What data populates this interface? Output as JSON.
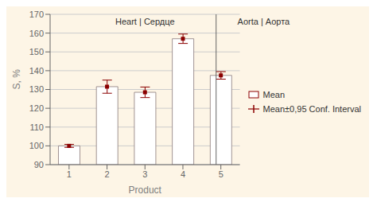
{
  "chart_data": {
    "type": "bar",
    "categories": [
      1,
      2,
      3,
      4,
      5
    ],
    "series": [
      {
        "name": "Mean",
        "color": "#ffffff",
        "edge_color": "#8a7a7a",
        "values": [
          100.0,
          131.5,
          128.5,
          157.0,
          137.5
        ],
        "errors": [
          0.8,
          3.5,
          2.8,
          2.5,
          2.0
        ],
        "error_label": "Mean±0,95 Conf. Interval",
        "error_color": "#8b0000"
      }
    ],
    "xlabel": "Product",
    "ylabel": "S, %",
    "ylim": [
      90,
      170
    ],
    "yticks": [
      90,
      100,
      110,
      120,
      130,
      140,
      150,
      160,
      170
    ],
    "grid": true,
    "legend": "right",
    "background_color": "#fdf5e6",
    "annotations": [
      "Heart | Сердце",
      "Aorta | Аорта"
    ]
  }
}
